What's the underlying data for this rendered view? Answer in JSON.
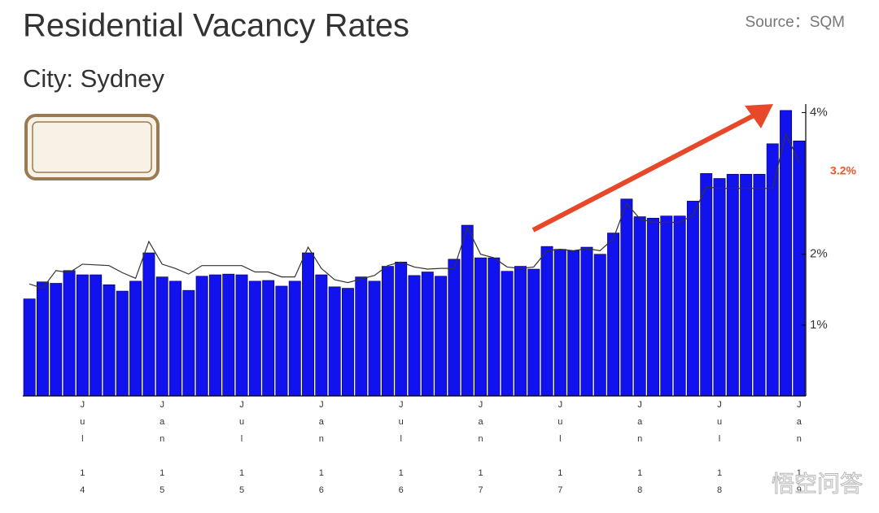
{
  "chart_data": {
    "type": "bar",
    "title": "Residential Vacancy Rates",
    "subtitle": "City: Sydney",
    "source": "Source：SQM",
    "annotation": "3.2%",
    "watermark": "悟空问答",
    "categories": [
      null,
      null,
      null,
      null,
      "Jul 14",
      null,
      null,
      null,
      null,
      null,
      "Jan 15",
      null,
      null,
      null,
      null,
      null,
      "Jul 15",
      null,
      null,
      null,
      null,
      null,
      "Jan 16",
      null,
      null,
      null,
      null,
      null,
      "Jul 16",
      null,
      null,
      null,
      null,
      null,
      "Jan 17",
      null,
      null,
      null,
      null,
      null,
      "Jul 17",
      null,
      null,
      null,
      null,
      null,
      "Jan 18",
      null,
      null,
      null,
      null,
      null,
      "Jul 18",
      null,
      null,
      null,
      null,
      null,
      "Jan 19"
    ],
    "series": [
      {
        "type": "bar",
        "color": "#1212ee",
        "values": [
          1.37,
          1.61,
          1.59,
          1.77,
          1.71,
          1.71,
          1.57,
          1.48,
          1.62,
          2.02,
          1.68,
          1.62,
          1.49,
          1.69,
          1.71,
          1.72,
          1.71,
          1.62,
          1.63,
          1.55,
          1.62,
          2.02,
          1.71,
          1.54,
          1.52,
          1.68,
          1.62,
          1.83,
          1.89,
          1.7,
          1.75,
          1.69,
          1.93,
          2.41,
          1.95,
          1.95,
          1.76,
          1.83,
          1.79,
          2.11,
          2.07,
          2.05,
          2.1,
          2.0,
          2.3,
          2.78,
          2.53,
          2.51,
          2.54,
          2.54,
          2.75,
          3.14,
          3.07,
          3.13,
          3.13,
          3.13,
          3.56,
          4.03,
          3.6
        ]
      },
      {
        "type": "line",
        "color": "#333333",
        "values": [
          1.58,
          1.52,
          1.77,
          1.74,
          1.86,
          1.85,
          1.84,
          1.74,
          1.66,
          2.18,
          1.86,
          1.8,
          1.72,
          1.84,
          1.84,
          1.84,
          1.84,
          1.75,
          1.75,
          1.68,
          1.68,
          2.1,
          1.8,
          1.64,
          1.6,
          1.65,
          1.7,
          1.84,
          1.89,
          1.82,
          1.79,
          1.8,
          1.8,
          2.38,
          2.0,
          1.95,
          1.82,
          1.8,
          1.82,
          2.05,
          2.07,
          2.05,
          2.08,
          2.05,
          2.22,
          2.72,
          2.5,
          2.45,
          2.45,
          2.45,
          2.55,
          2.95,
          2.93,
          2.93,
          2.93,
          2.93,
          2.93,
          3.7,
          3.3
        ]
      }
    ],
    "ylim": [
      0,
      4.12
    ],
    "yticks": [
      {
        "value": 1,
        "label": "1%"
      },
      {
        "value": 2,
        "label": "2%"
      },
      {
        "value": 4,
        "label": "4%"
      }
    ]
  }
}
